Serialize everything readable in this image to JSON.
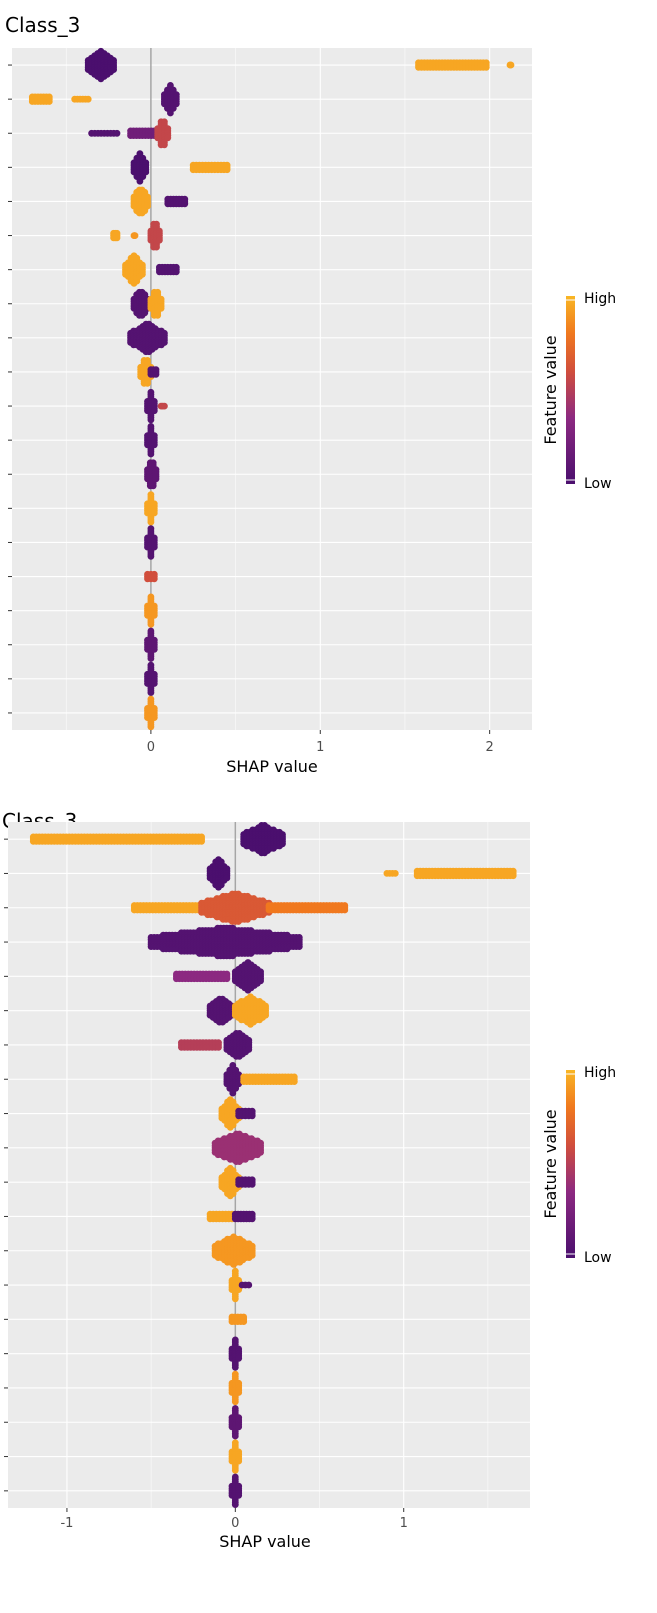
{
  "chart_data": [
    {
      "type": "scatter",
      "title": "Class_3",
      "xlabel": "SHAP value",
      "ylabel": "",
      "xlim": [
        -0.82,
        2.25
      ],
      "xticks": [
        0,
        1,
        2
      ],
      "xtick_labels": [
        "0",
        "1",
        "2"
      ],
      "grid": true,
      "legend": {
        "title": "Feature value",
        "high_label": "High",
        "low_label": "Low",
        "placement": "right"
      },
      "n_features": 20,
      "features": [
        {
          "spread": [
            -0.37,
            2.12
          ],
          "runs": [
            [
              -0.37,
              -0.22,
              0.0,
              2
            ],
            [
              1.58,
              1.98,
              0.95,
              1
            ],
            [
              2.12,
              2.12,
              0.95,
              0
            ]
          ]
        },
        {
          "spread": [
            -0.7,
            0.15
          ],
          "runs": [
            [
              -0.7,
              -0.6,
              0.95,
              1
            ],
            [
              -0.45,
              -0.37,
              0.95,
              0
            ],
            [
              0.08,
              0.15,
              0.05,
              2
            ]
          ]
        },
        {
          "spread": [
            -0.35,
            0.1
          ],
          "runs": [
            [
              -0.35,
              -0.2,
              0.05,
              0
            ],
            [
              -0.12,
              0.02,
              0.2,
              1
            ],
            [
              0.04,
              0.1,
              0.55,
              2
            ]
          ]
        },
        {
          "spread": [
            -0.1,
            0.45
          ],
          "runs": [
            [
              -0.1,
              -0.03,
              0.0,
              2
            ],
            [
              0.25,
              0.45,
              0.95,
              1
            ]
          ]
        },
        {
          "spread": [
            -0.1,
            0.2
          ],
          "runs": [
            [
              -0.1,
              -0.02,
              0.95,
              2
            ],
            [
              0.1,
              0.2,
              0.05,
              1
            ]
          ]
        },
        {
          "spread": [
            -0.22,
            0.05
          ],
          "runs": [
            [
              -0.22,
              -0.2,
              0.95,
              1
            ],
            [
              -0.1,
              -0.1,
              0.9,
              0
            ],
            [
              0.0,
              0.05,
              0.55,
              2
            ]
          ]
        },
        {
          "spread": [
            -0.15,
            0.15
          ],
          "runs": [
            [
              -0.15,
              -0.05,
              0.95,
              2
            ],
            [
              0.05,
              0.15,
              0.05,
              1
            ]
          ]
        },
        {
          "spread": [
            -0.1,
            0.06
          ],
          "runs": [
            [
              -0.1,
              -0.02,
              0.05,
              2
            ],
            [
              0.0,
              0.06,
              0.95,
              2
            ]
          ]
        },
        {
          "spread": [
            -0.12,
            0.08
          ],
          "runs": [
            [
              -0.12,
              0.08,
              0.05,
              2
            ]
          ]
        },
        {
          "spread": [
            -0.06,
            0.03
          ],
          "runs": [
            [
              -0.06,
              0.0,
              0.95,
              2
            ],
            [
              0.0,
              0.03,
              0.05,
              1
            ]
          ]
        },
        {
          "spread": [
            -0.02,
            0.08
          ],
          "runs": [
            [
              -0.02,
              0.02,
              0.05,
              2
            ],
            [
              0.06,
              0.08,
              0.55,
              0
            ]
          ]
        },
        {
          "spread": [
            -0.02,
            0.02
          ],
          "runs": [
            [
              -0.02,
              0.02,
              0.05,
              2
            ]
          ]
        },
        {
          "spread": [
            -0.02,
            0.03
          ],
          "runs": [
            [
              -0.02,
              0.03,
              0.1,
              2
            ]
          ]
        },
        {
          "spread": [
            -0.02,
            0.02
          ],
          "runs": [
            [
              -0.02,
              0.02,
              0.95,
              2
            ]
          ]
        },
        {
          "spread": [
            -0.02,
            0.02
          ],
          "runs": [
            [
              -0.02,
              0.02,
              0.05,
              2
            ]
          ]
        },
        {
          "spread": [
            -0.02,
            0.02
          ],
          "runs": [
            [
              -0.02,
              0.02,
              0.6,
              1
            ]
          ]
        },
        {
          "spread": [
            -0.02,
            0.02
          ],
          "runs": [
            [
              -0.02,
              0.02,
              0.9,
              2
            ]
          ]
        },
        {
          "spread": [
            -0.02,
            0.02
          ],
          "runs": [
            [
              -0.02,
              0.02,
              0.1,
              2
            ]
          ]
        },
        {
          "spread": [
            -0.02,
            0.02
          ],
          "runs": [
            [
              -0.02,
              0.02,
              0.05,
              2
            ]
          ]
        },
        {
          "spread": [
            -0.02,
            0.02
          ],
          "runs": [
            [
              -0.02,
              0.02,
              0.9,
              2
            ]
          ]
        }
      ]
    },
    {
      "type": "scatter",
      "title": "Class_3",
      "xlabel": "SHAP value",
      "ylabel": "",
      "xlim": [
        -1.35,
        1.75
      ],
      "xticks": [
        -1,
        0,
        1
      ],
      "xtick_labels": [
        "-1",
        "0",
        "1"
      ],
      "grid": true,
      "legend": {
        "title": "Feature value",
        "high_label": "High",
        "low_label": "Low",
        "placement": "right"
      },
      "n_features": 20,
      "features": [
        {
          "spread": [
            -1.2,
            0.28
          ],
          "runs": [
            [
              -1.2,
              -0.2,
              0.95,
              1
            ],
            [
              0.05,
              0.28,
              0.0,
              2
            ]
          ]
        },
        {
          "spread": [
            -0.15,
            1.65
          ],
          "runs": [
            [
              -0.15,
              -0.05,
              0.0,
              2
            ],
            [
              0.9,
              0.95,
              0.95,
              0
            ],
            [
              1.08,
              1.65,
              0.95,
              1
            ]
          ]
        },
        {
          "spread": [
            -0.6,
            0.65
          ],
          "runs": [
            [
              -0.6,
              -0.2,
              0.95,
              1
            ],
            [
              -0.2,
              0.2,
              0.65,
              2
            ],
            [
              0.2,
              0.65,
              0.8,
              1
            ]
          ]
        },
        {
          "spread": [
            -0.5,
            0.38
          ],
          "runs": [
            [
              -0.5,
              0.38,
              0.05,
              2
            ]
          ]
        },
        {
          "spread": [
            -0.35,
            0.15
          ],
          "runs": [
            [
              -0.35,
              -0.05,
              0.35,
              1
            ],
            [
              0.0,
              0.15,
              0.05,
              2
            ]
          ]
        },
        {
          "spread": [
            -0.15,
            0.18
          ],
          "runs": [
            [
              -0.15,
              -0.02,
              0.05,
              2
            ],
            [
              0.0,
              0.18,
              0.95,
              2
            ]
          ]
        },
        {
          "spread": [
            -0.32,
            0.08
          ],
          "runs": [
            [
              -0.32,
              -0.1,
              0.5,
              1
            ],
            [
              -0.05,
              0.08,
              0.05,
              2
            ]
          ]
        },
        {
          "spread": [
            -0.05,
            0.35
          ],
          "runs": [
            [
              -0.05,
              0.02,
              0.05,
              2
            ],
            [
              0.05,
              0.35,
              0.95,
              1
            ]
          ]
        },
        {
          "spread": [
            -0.08,
            0.1
          ],
          "runs": [
            [
              -0.08,
              0.02,
              0.95,
              2
            ],
            [
              0.02,
              0.1,
              0.05,
              1
            ]
          ]
        },
        {
          "spread": [
            -0.12,
            0.15
          ],
          "runs": [
            [
              -0.12,
              0.15,
              0.4,
              2
            ]
          ]
        },
        {
          "spread": [
            -0.08,
            0.1
          ],
          "runs": [
            [
              -0.08,
              0.02,
              0.95,
              2
            ],
            [
              0.02,
              0.1,
              0.05,
              1
            ]
          ]
        },
        {
          "spread": [
            -0.15,
            0.1
          ],
          "runs": [
            [
              -0.15,
              -0.02,
              0.95,
              1
            ],
            [
              0.0,
              0.1,
              0.05,
              1
            ]
          ]
        },
        {
          "spread": [
            -0.12,
            0.1
          ],
          "runs": [
            [
              -0.12,
              0.1,
              0.9,
              2
            ]
          ]
        },
        {
          "spread": [
            -0.02,
            0.08
          ],
          "runs": [
            [
              -0.02,
              0.02,
              0.95,
              2
            ],
            [
              0.04,
              0.08,
              0.05,
              0
            ]
          ]
        },
        {
          "spread": [
            -0.02,
            0.05
          ],
          "runs": [
            [
              -0.02,
              0.05,
              0.9,
              1
            ]
          ]
        },
        {
          "spread": [
            -0.02,
            0.02
          ],
          "runs": [
            [
              -0.02,
              0.02,
              0.05,
              2
            ]
          ]
        },
        {
          "spread": [
            -0.02,
            0.02
          ],
          "runs": [
            [
              -0.02,
              0.02,
              0.9,
              2
            ]
          ]
        },
        {
          "spread": [
            -0.02,
            0.02
          ],
          "runs": [
            [
              -0.02,
              0.02,
              0.1,
              2
            ]
          ]
        },
        {
          "spread": [
            -0.02,
            0.02
          ],
          "runs": [
            [
              -0.02,
              0.02,
              0.95,
              2
            ]
          ]
        },
        {
          "spread": [
            -0.02,
            0.02
          ],
          "runs": [
            [
              -0.02,
              0.02,
              0.05,
              2
            ]
          ]
        }
      ]
    }
  ],
  "colors": {
    "panel": "#ebebeb",
    "grid": "#ffffff",
    "zero_line": "#a6a6a6",
    "tick_text": "#4d4d4d",
    "low": "#5b157e",
    "high": "#f9b624"
  }
}
